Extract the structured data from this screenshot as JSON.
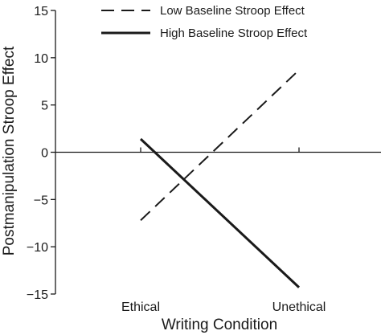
{
  "chart_data": {
    "type": "line",
    "title": "",
    "xlabel": "Writing Condition",
    "ylabel": "Postmanipulation Stroop Effect",
    "categories": [
      "Ethical",
      "Unethical"
    ],
    "ylim": [
      -15,
      15
    ],
    "yticks": [
      {
        "value": 15,
        "label": "15"
      },
      {
        "value": 10,
        "label": "10"
      },
      {
        "value": 5,
        "label": "5"
      },
      {
        "value": 0,
        "label": "0"
      },
      {
        "value": -5,
        "label": "−5"
      },
      {
        "value": -10,
        "label": "−10"
      },
      {
        "value": -15,
        "label": "−15"
      }
    ],
    "series": [
      {
        "name": "Low Baseline Stroop Effect",
        "style": "dashed",
        "color": "#1a1a1a",
        "values": [
          -7.2,
          8.7
        ]
      },
      {
        "name": "High Baseline Stroop Effect",
        "style": "solid",
        "color": "#1a1a1a",
        "values": [
          1.4,
          -14.3
        ]
      }
    ],
    "grid": false,
    "legend_position": "top-right"
  }
}
